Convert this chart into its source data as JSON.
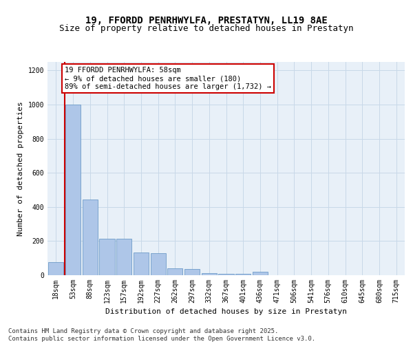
{
  "title_line1": "19, FFORDD PENRHWYLFA, PRESTATYN, LL19 8AE",
  "title_line2": "Size of property relative to detached houses in Prestatyn",
  "xlabel": "Distribution of detached houses by size in Prestatyn",
  "ylabel": "Number of detached properties",
  "categories": [
    "18sqm",
    "53sqm",
    "88sqm",
    "123sqm",
    "157sqm",
    "192sqm",
    "227sqm",
    "262sqm",
    "297sqm",
    "332sqm",
    "367sqm",
    "401sqm",
    "436sqm",
    "471sqm",
    "506sqm",
    "541sqm",
    "576sqm",
    "610sqm",
    "645sqm",
    "680sqm",
    "715sqm"
  ],
  "values": [
    75,
    1000,
    445,
    215,
    215,
    135,
    130,
    40,
    38,
    12,
    10,
    8,
    20,
    0,
    0,
    0,
    0,
    0,
    0,
    0,
    0
  ],
  "bar_color": "#aec6e8",
  "bar_edge_color": "#5a8fc0",
  "vline_color": "#cc0000",
  "annotation_text": "19 FFORDD PENRHWYLFA: 58sqm\n← 9% of detached houses are smaller (180)\n89% of semi-detached houses are larger (1,732) →",
  "annotation_box_color": "#cc0000",
  "ylim": [
    0,
    1250
  ],
  "yticks": [
    0,
    200,
    400,
    600,
    800,
    1000,
    1200
  ],
  "grid_color": "#c8d8e8",
  "background_color": "#e8f0f8",
  "footer_text": "Contains HM Land Registry data © Crown copyright and database right 2025.\nContains public sector information licensed under the Open Government Licence v3.0.",
  "title_fontsize": 10,
  "subtitle_fontsize": 9,
  "label_fontsize": 8,
  "tick_fontsize": 7,
  "annotation_fontsize": 7.5,
  "footer_fontsize": 6.5
}
